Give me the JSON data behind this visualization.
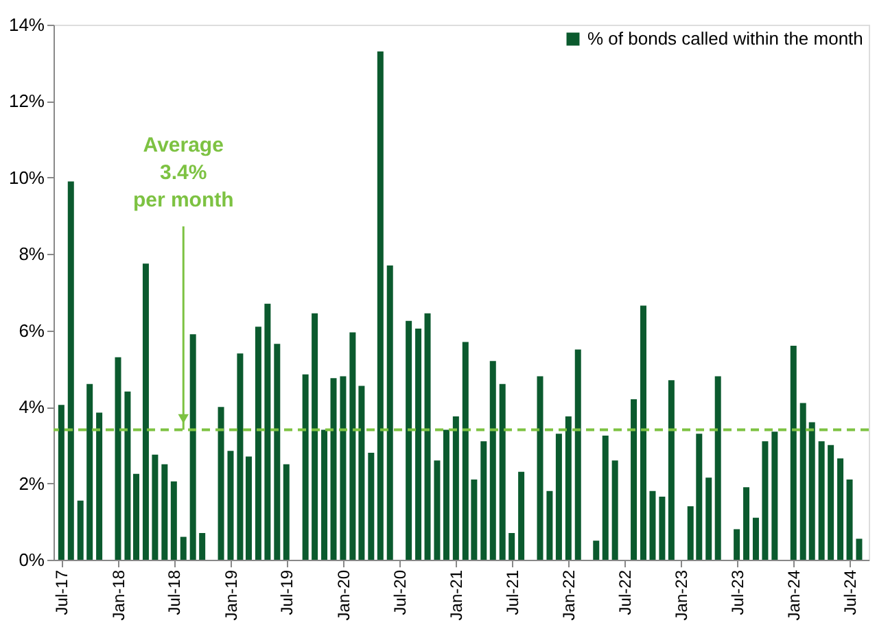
{
  "chart_data": {
    "type": "bar",
    "x": [
      "2017-07",
      "2017-08",
      "2017-09",
      "2017-10",
      "2017-11",
      "2017-12",
      "2018-01",
      "2018-02",
      "2018-03",
      "2018-04",
      "2018-05",
      "2018-06",
      "2018-07",
      "2018-08",
      "2018-09",
      "2018-10",
      "2018-11",
      "2018-12",
      "2019-01",
      "2019-02",
      "2019-03",
      "2019-04",
      "2019-05",
      "2019-06",
      "2019-07",
      "2019-08",
      "2019-09",
      "2019-10",
      "2019-11",
      "2019-12",
      "2020-01",
      "2020-02",
      "2020-03",
      "2020-04",
      "2020-05",
      "2020-06",
      "2020-07",
      "2020-08",
      "2020-09",
      "2020-10",
      "2020-11",
      "2020-12",
      "2021-01",
      "2021-02",
      "2021-03",
      "2021-04",
      "2021-05",
      "2021-06",
      "2021-07",
      "2021-08",
      "2021-09",
      "2021-10",
      "2021-11",
      "2021-12",
      "2022-01",
      "2022-02",
      "2022-03",
      "2022-04",
      "2022-05",
      "2022-06",
      "2022-07",
      "2022-08",
      "2022-09",
      "2022-10",
      "2022-11",
      "2022-12",
      "2023-01",
      "2023-02",
      "2023-03",
      "2023-04",
      "2023-05",
      "2023-06",
      "2023-07",
      "2023-08",
      "2023-09",
      "2023-10",
      "2023-11",
      "2023-12",
      "2024-01",
      "2024-02",
      "2024-03",
      "2024-04",
      "2024-05",
      "2024-06",
      "2024-07",
      "2024-08"
    ],
    "series": [
      {
        "name": "% of bonds called within the month",
        "color": "#0b5a2e",
        "values": [
          4.05,
          9.9,
          1.55,
          4.6,
          3.85,
          0,
          5.3,
          4.4,
          2.25,
          7.75,
          2.75,
          2.5,
          2.05,
          0.6,
          5.9,
          0.7,
          0,
          4.0,
          2.85,
          5.4,
          2.7,
          6.1,
          6.7,
          5.65,
          2.5,
          0,
          4.85,
          6.45,
          3.4,
          4.75,
          4.8,
          5.95,
          4.55,
          2.8,
          13.3,
          7.7,
          0,
          6.25,
          6.05,
          6.45,
          2.6,
          3.4,
          3.75,
          5.7,
          2.1,
          3.1,
          5.2,
          4.6,
          0.7,
          2.3,
          0,
          4.8,
          1.8,
          3.3,
          3.75,
          5.5,
          0,
          0.5,
          3.25,
          2.6,
          0,
          4.2,
          6.65,
          1.8,
          1.65,
          4.7,
          0,
          1.4,
          3.3,
          2.15,
          4.8,
          0,
          0.8,
          1.9,
          1.1,
          3.1,
          3.35,
          0,
          5.6,
          4.1,
          3.6,
          3.1,
          3.0,
          2.65,
          2.1,
          0.55
        ]
      }
    ],
    "xlim": [
      "2017-06-28",
      "2024-08-10"
    ],
    "xticks": [
      {
        "value": "2017-07",
        "label": "Jul-17"
      },
      {
        "value": "2018-01",
        "label": "Jan-18"
      },
      {
        "value": "2018-07",
        "label": "Jul-18"
      },
      {
        "value": "2019-01",
        "label": "Jan-19"
      },
      {
        "value": "2019-07",
        "label": "Jul-19"
      },
      {
        "value": "2020-01",
        "label": "Jan-20"
      },
      {
        "value": "2020-07",
        "label": "Jul-20"
      },
      {
        "value": "2021-01",
        "label": "Jan-21"
      },
      {
        "value": "2021-07",
        "label": "Jul-21"
      },
      {
        "value": "2022-01",
        "label": "Jan-22"
      },
      {
        "value": "2022-07",
        "label": "Jul-22"
      },
      {
        "value": "2023-01",
        "label": "Jan-23"
      },
      {
        "value": "2023-07",
        "label": "Jul-23"
      },
      {
        "value": "2024-01",
        "label": "Jan-24"
      },
      {
        "value": "2024-07",
        "label": "Jul-24"
      }
    ],
    "ylim": [
      0,
      14
    ],
    "yticks": [
      {
        "value": 0,
        "label": "0%"
      },
      {
        "value": 2,
        "label": "2%"
      },
      {
        "value": 4,
        "label": "4%"
      },
      {
        "value": 6,
        "label": "6%"
      },
      {
        "value": 8,
        "label": "8%"
      },
      {
        "value": 10,
        "label": "10%"
      },
      {
        "value": 12,
        "label": "12%"
      },
      {
        "value": 14,
        "label": "14%"
      }
    ],
    "ref_lines": [
      {
        "axis": "y",
        "value": 3.4,
        "color": "#7dc242",
        "line_style": "dashed"
      }
    ],
    "annotations": [
      {
        "text": "Average\n3.4%\nper month",
        "x": "2018-08",
        "y": 3.4
      }
    ],
    "grid": false,
    "legend": "top right"
  }
}
